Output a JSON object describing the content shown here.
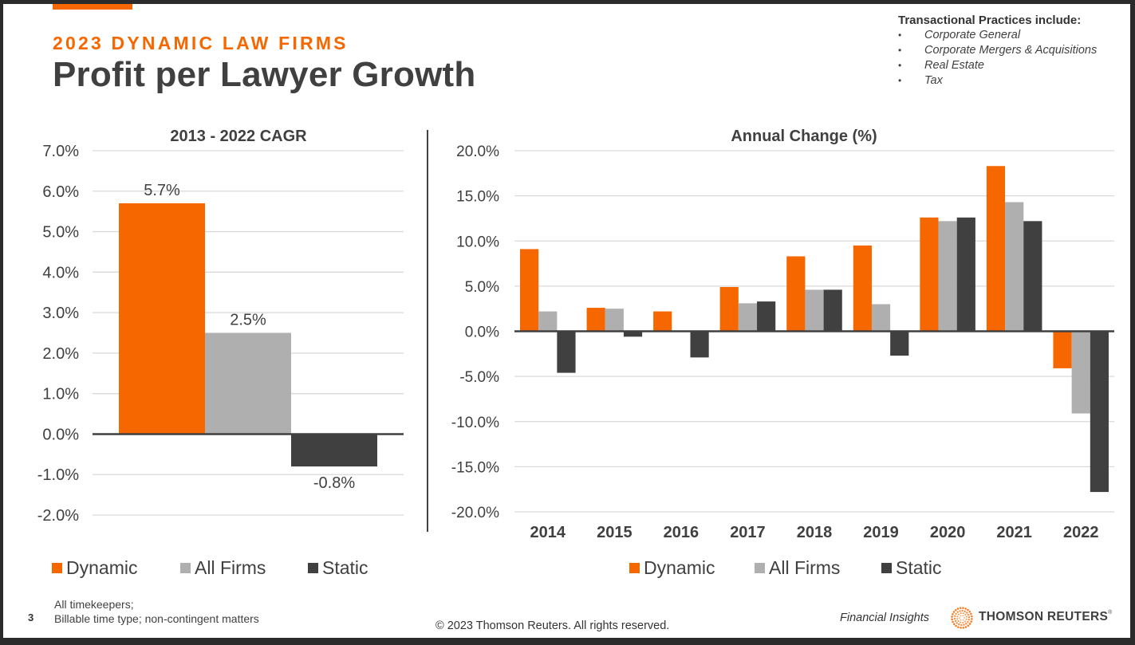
{
  "header": {
    "eyebrow": "2023 DYNAMIC LAW FIRMS",
    "title": "Profit per Lawyer Growth"
  },
  "note": {
    "heading": "Transactional Practices include:",
    "bullet": "•",
    "items": [
      "Corporate General",
      "Corporate Mergers & Acquisitions",
      "Real Estate",
      "Tax"
    ]
  },
  "colors": {
    "accent": "#f76700",
    "dynamic": "#f76700",
    "all_firms": "#afafaf",
    "static": "#404040",
    "grid": "#d9d9d9",
    "text": "#404040"
  },
  "chart_data": [
    {
      "type": "bar",
      "title": "2013 - 2022 CAGR",
      "xlabel": "",
      "ylabel": "",
      "categories": [
        "2013 - 2022"
      ],
      "series": [
        {
          "name": "Dynamic",
          "values": [
            5.7
          ],
          "label": "5.7%"
        },
        {
          "name": "All Firms",
          "values": [
            2.5
          ],
          "label": "2.5%"
        },
        {
          "name": "Static",
          "values": [
            -0.8
          ],
          "label": "-0.8%"
        }
      ],
      "ylim": [
        -2.0,
        7.0
      ],
      "yticks": [
        7.0,
        6.0,
        5.0,
        4.0,
        3.0,
        2.0,
        1.0,
        0.0,
        -1.0,
        -2.0
      ],
      "ytick_labels": [
        "7.0%",
        "6.0%",
        "5.0%",
        "4.0%",
        "3.0%",
        "2.0%",
        "1.0%",
        "0.0%",
        "-1.0%",
        "-2.0%"
      ],
      "grid": true,
      "data_labels": true,
      "legend": [
        "Dynamic",
        "All Firms",
        "Static"
      ],
      "legend_position": "bottom"
    },
    {
      "type": "bar",
      "title": "Annual Change (%)",
      "xlabel": "",
      "ylabel": "",
      "categories": [
        "2014",
        "2015",
        "2016",
        "2017",
        "2018",
        "2019",
        "2020",
        "2021",
        "2022"
      ],
      "series": [
        {
          "name": "Dynamic",
          "values": [
            9.1,
            2.6,
            2.2,
            4.9,
            8.3,
            9.5,
            12.6,
            18.3,
            -4.1
          ]
        },
        {
          "name": "All Firms",
          "values": [
            2.2,
            2.5,
            0.0,
            3.1,
            4.6,
            3.0,
            12.2,
            14.3,
            -9.1
          ]
        },
        {
          "name": "Static",
          "values": [
            -4.6,
            -0.6,
            -2.9,
            3.3,
            4.6,
            -2.7,
            12.6,
            12.2,
            -17.8
          ]
        }
      ],
      "ylim": [
        -20.0,
        20.0
      ],
      "yticks": [
        20.0,
        15.0,
        10.0,
        5.0,
        0.0,
        -5.0,
        -10.0,
        -15.0,
        -20.0
      ],
      "ytick_labels": [
        "20.0%",
        "15.0%",
        "10.0%",
        "5.0%",
        "0.0%",
        "-5.0%",
        "-10.0%",
        "-15.0%",
        "-20.0%"
      ],
      "grid": true,
      "data_labels": false,
      "legend": [
        "Dynamic",
        "All Firms",
        "Static"
      ],
      "legend_position": "bottom"
    }
  ],
  "footer": {
    "page_number": "3",
    "footnote_lines": [
      "All timekeepers;",
      "Billable time type; non-contingent matters"
    ],
    "copyright": "© 2023 Thomson Reuters. All rights reserved.",
    "product": "Financial Insights",
    "brand": "THOMSON REUTERS",
    "brand_mark": "®",
    "logo_icon": "thomson-reuters-dot-sphere"
  }
}
